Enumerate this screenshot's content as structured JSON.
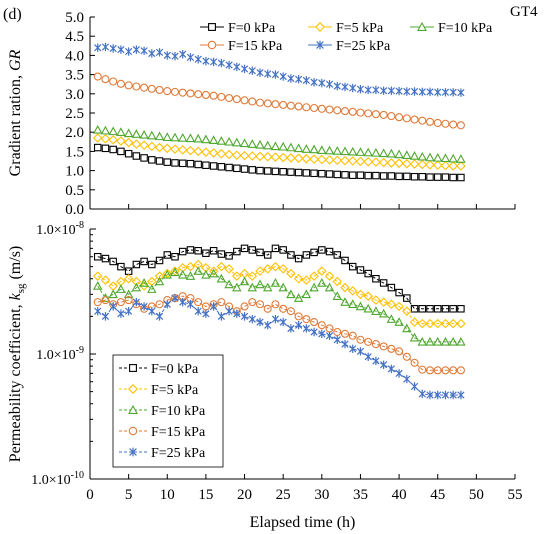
{
  "figure": {
    "panel_label": "(d)",
    "case_label": "GT4",
    "xlabel": "Elapsed time (h)",
    "x_ticks": [
      "0",
      "5",
      "10",
      "15",
      "20",
      "25",
      "30",
      "35",
      "40",
      "45",
      "50",
      "55"
    ]
  },
  "styles": [
    {
      "color": "#000000",
      "marker": "square"
    },
    {
      "color": "#ffc000",
      "marker": "diamond"
    },
    {
      "color": "#4ea72e",
      "marker": "triangle"
    },
    {
      "color": "#e07b39",
      "marker": "circle"
    },
    {
      "color": "#4472c4",
      "marker": "star"
    }
  ],
  "chart_data": [
    {
      "type": "scatter",
      "ylabel": "Gradient ration, GR",
      "y_ticks": [
        "0.0",
        "0.5",
        "1.0",
        "1.5",
        "2.0",
        "2.5",
        "3.0",
        "3.5",
        "4.0",
        "4.5",
        "5.0"
      ],
      "xlim": [
        0,
        55
      ],
      "ylim": [
        0,
        5
      ],
      "grid": false,
      "legend_position": "top",
      "x": [
        1,
        2,
        3,
        4,
        5,
        6,
        7,
        8,
        9,
        10,
        11,
        12,
        13,
        14,
        15,
        16,
        17,
        18,
        19,
        20,
        21,
        22,
        23,
        24,
        25,
        26,
        27,
        28,
        29,
        30,
        31,
        32,
        33,
        34,
        35,
        36,
        37,
        38,
        39,
        40,
        41,
        42,
        43,
        44,
        45,
        46,
        47,
        48
      ],
      "series": [
        {
          "name": "F=0 kPa",
          "values": [
            1.6,
            1.58,
            1.55,
            1.5,
            1.44,
            1.38,
            1.33,
            1.28,
            1.25,
            1.22,
            1.2,
            1.19,
            1.18,
            1.16,
            1.14,
            1.12,
            1.1,
            1.08,
            1.06,
            1.04,
            1.02,
            1.0,
            0.99,
            0.98,
            0.97,
            0.96,
            0.95,
            0.94,
            0.93,
            0.92,
            0.91,
            0.9,
            0.89,
            0.88,
            0.88,
            0.87,
            0.87,
            0.86,
            0.86,
            0.85,
            0.85,
            0.84,
            0.84,
            0.83,
            0.83,
            0.83,
            0.82,
            0.82
          ]
        },
        {
          "name": "F=5 kPa",
          "values": [
            1.85,
            1.83,
            1.8,
            1.77,
            1.73,
            1.69,
            1.66,
            1.63,
            1.6,
            1.58,
            1.56,
            1.54,
            1.52,
            1.5,
            1.48,
            1.46,
            1.44,
            1.42,
            1.4,
            1.39,
            1.38,
            1.37,
            1.36,
            1.35,
            1.34,
            1.33,
            1.32,
            1.31,
            1.3,
            1.29,
            1.28,
            1.27,
            1.26,
            1.25,
            1.24,
            1.23,
            1.22,
            1.21,
            1.2,
            1.19,
            1.18,
            1.17,
            1.16,
            1.15,
            1.14,
            1.13,
            1.12,
            1.12
          ]
        },
        {
          "name": "F=10 kPa",
          "values": [
            2.06,
            2.04,
            2.02,
            2.0,
            1.97,
            1.95,
            1.93,
            1.91,
            1.89,
            1.87,
            1.86,
            1.85,
            1.84,
            1.83,
            1.81,
            1.79,
            1.77,
            1.75,
            1.73,
            1.71,
            1.69,
            1.67,
            1.65,
            1.63,
            1.62,
            1.6,
            1.58,
            1.56,
            1.55,
            1.53,
            1.52,
            1.51,
            1.5,
            1.49,
            1.48,
            1.47,
            1.46,
            1.45,
            1.44,
            1.42,
            1.4,
            1.38,
            1.36,
            1.34,
            1.33,
            1.32,
            1.31,
            1.3
          ]
        },
        {
          "name": "F=15 kPa",
          "values": [
            3.45,
            3.38,
            3.32,
            3.26,
            3.22,
            3.19,
            3.16,
            3.13,
            3.1,
            3.07,
            3.05,
            3.03,
            3.01,
            2.99,
            2.97,
            2.95,
            2.92,
            2.89,
            2.86,
            2.83,
            2.8,
            2.77,
            2.75,
            2.73,
            2.71,
            2.69,
            2.67,
            2.65,
            2.63,
            2.61,
            2.59,
            2.57,
            2.55,
            2.53,
            2.51,
            2.49,
            2.47,
            2.45,
            2.42,
            2.39,
            2.36,
            2.33,
            2.3,
            2.27,
            2.24,
            2.22,
            2.2,
            2.18
          ]
        },
        {
          "name": "F=25 kPa",
          "values": [
            4.2,
            4.22,
            4.18,
            4.15,
            4.1,
            4.15,
            4.12,
            4.05,
            4.08,
            4.0,
            3.98,
            4.03,
            3.95,
            3.9,
            3.85,
            3.83,
            3.8,
            3.75,
            3.7,
            3.65,
            3.6,
            3.55,
            3.52,
            3.5,
            3.45,
            3.4,
            3.38,
            3.35,
            3.3,
            3.28,
            3.25,
            3.2,
            3.18,
            3.15,
            3.12,
            3.1,
            3.1,
            3.08,
            3.08,
            3.07,
            3.06,
            3.06,
            3.05,
            3.05,
            3.04,
            3.04,
            3.04,
            3.03
          ]
        }
      ]
    },
    {
      "type": "line",
      "ylabel": "Permeability coefficient, k_sg (m/s)",
      "y_ticks": [
        "1.0×10^-8",
        "1.0×10^-9",
        "1.0×10^-10"
      ],
      "yscale": "log",
      "xlim": [
        0,
        55
      ],
      "ylim": [
        1e-10,
        1e-08
      ],
      "grid": false,
      "legend_position": "bottom-left",
      "x": [
        1,
        2,
        3,
        4,
        5,
        6,
        7,
        8,
        9,
        10,
        11,
        12,
        13,
        14,
        15,
        16,
        17,
        18,
        19,
        20,
        21,
        22,
        23,
        24,
        25,
        26,
        27,
        28,
        29,
        30,
        31,
        32,
        33,
        34,
        35,
        36,
        37,
        38,
        39,
        40,
        41,
        42,
        43,
        44,
        45,
        46,
        47,
        48
      ],
      "series": [
        {
          "name": "F=0 kPa",
          "values": [
            6e-09,
            5.8e-09,
            5.5e-09,
            5e-09,
            4.6e-09,
            5.2e-09,
            5.5e-09,
            5.2e-09,
            5.6e-09,
            6.2e-09,
            6e-09,
            6.6e-09,
            6.8e-09,
            6.7e-09,
            6.4e-09,
            6.7e-09,
            6.3e-09,
            6.1e-09,
            6.6e-09,
            7e-09,
            6.8e-09,
            6.5e-09,
            6.2e-09,
            7e-09,
            6.8e-09,
            6.2e-09,
            5.8e-09,
            6.2e-09,
            6.5e-09,
            6.8e-09,
            6.6e-09,
            6.2e-09,
            5.6e-09,
            5e-09,
            4.7e-09,
            4.4e-09,
            4e-09,
            3.7e-09,
            3.4e-09,
            3.1e-09,
            2.8e-09,
            2.3e-09,
            2.3e-09,
            2.3e-09,
            2.3e-09,
            2.3e-09,
            2.3e-09,
            2.3e-09
          ]
        },
        {
          "name": "F=5 kPa",
          "values": [
            4.2e-09,
            3.9e-09,
            3.5e-09,
            3.8e-09,
            4e-09,
            3.8e-09,
            3.5e-09,
            3.8e-09,
            4.2e-09,
            4.4e-09,
            4.6e-09,
            4.9e-09,
            5e-09,
            5.2e-09,
            4.9e-09,
            4.6e-09,
            5e-09,
            4.8e-09,
            4.2e-09,
            4.4e-09,
            4.2e-09,
            4.6e-09,
            4.8e-09,
            5e-09,
            4.8e-09,
            4.4e-09,
            4e-09,
            3.9e-09,
            4.2e-09,
            4.6e-09,
            4.2e-09,
            3.8e-09,
            3.4e-09,
            3.2e-09,
            3e-09,
            2.9e-09,
            2.7e-09,
            2.6e-09,
            2.5e-09,
            2.4e-09,
            2.2e-09,
            1.8e-09,
            1.75e-09,
            1.75e-09,
            1.75e-09,
            1.75e-09,
            1.75e-09,
            1.75e-09
          ]
        },
        {
          "name": "F=10 kPa",
          "values": [
            3.5e-09,
            2.8e-09,
            3e-09,
            3.3e-09,
            3e-09,
            3.4e-09,
            3.7e-09,
            3.3e-09,
            3.8e-09,
            4.3e-09,
            4.5e-09,
            4.3e-09,
            4.2e-09,
            4.6e-09,
            4.3e-09,
            4.4e-09,
            4e-09,
            3.6e-09,
            3.4e-09,
            3.8e-09,
            3.4e-09,
            3.6e-09,
            3.4e-09,
            3.7e-09,
            3.4e-09,
            3e-09,
            2.8e-09,
            3e-09,
            3.4e-09,
            3.7e-09,
            3.4e-09,
            2.9e-09,
            2.6e-09,
            2.5e-09,
            2.4e-09,
            2.3e-09,
            2.2e-09,
            2.1e-09,
            1.9e-09,
            1.8e-09,
            1.6e-09,
            1.35e-09,
            1.25e-09,
            1.25e-09,
            1.25e-09,
            1.25e-09,
            1.25e-09,
            1.25e-09
          ]
        },
        {
          "name": "F=15 kPa",
          "values": [
            2.6e-09,
            2.7e-09,
            2.5e-09,
            2.6e-09,
            2.7e-09,
            2.5e-09,
            2.3e-09,
            2.4e-09,
            2.5e-09,
            2.7e-09,
            2.8e-09,
            2.9e-09,
            2.8e-09,
            2.6e-09,
            2.4e-09,
            2.5e-09,
            2.6e-09,
            2.4e-09,
            2.2e-09,
            2.4e-09,
            2.6e-09,
            2.5e-09,
            2.3e-09,
            2.5e-09,
            2.3e-09,
            2.2e-09,
            2e-09,
            1.9e-09,
            1.8e-09,
            1.7e-09,
            1.6e-09,
            1.5e-09,
            1.45e-09,
            1.4e-09,
            1.3e-09,
            1.25e-09,
            1.2e-09,
            1.15e-09,
            1.1e-09,
            1.05e-09,
            9.5e-10,
            8.5e-10,
            7.5e-10,
            7.4e-10,
            7.4e-10,
            7.4e-10,
            7.4e-10,
            7.4e-10
          ]
        },
        {
          "name": "F=25 kPa",
          "values": [
            2.2e-09,
            2e-09,
            2.4e-09,
            2.1e-09,
            2.2e-09,
            2.6e-09,
            2.4e-09,
            2.2e-09,
            2e-09,
            2.5e-09,
            2.8e-09,
            2.6e-09,
            2.5e-09,
            2.2e-09,
            2.1e-09,
            2.4e-09,
            2e-09,
            2.2e-09,
            2.1e-09,
            2e-09,
            1.9e-09,
            1.8e-09,
            1.7e-09,
            1.9e-09,
            1.8e-09,
            1.6e-09,
            1.7e-09,
            1.6e-09,
            1.5e-09,
            1.45e-09,
            1.4e-09,
            1.3e-09,
            1.2e-09,
            1.1e-09,
            1.05e-09,
            9.5e-10,
            8.8e-10,
            8.2e-10,
            7.6e-10,
            7e-10,
            6.3e-10,
            5.5e-10,
            4.8e-10,
            4.7e-10,
            4.7e-10,
            4.7e-10,
            4.7e-10,
            4.7e-10
          ]
        }
      ]
    }
  ]
}
